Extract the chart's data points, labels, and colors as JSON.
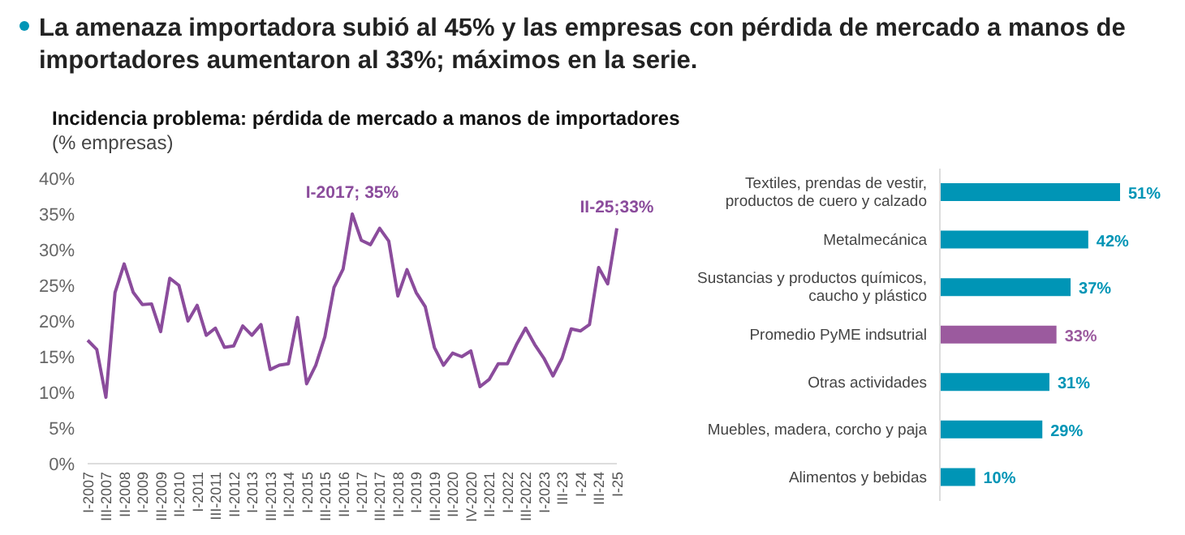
{
  "chart_data": [
    {
      "type": "line",
      "title": "La amenaza importadora subió al 45% y las empresas con pérdida de mercado a manos de importadores aumentaron al 33%; máximos en la serie.",
      "subtitle": "Incidencia problema: pérdida de mercado a manos de importadores",
      "ylabel": "(% empresas)",
      "categories": [
        "I-2007",
        null,
        "III-2007",
        null,
        "II-2008",
        null,
        "I-2009",
        null,
        "III-2009",
        null,
        "II-2010",
        null,
        "I-2011",
        null,
        "III-2011",
        null,
        "II-2012",
        null,
        "I-2013",
        null,
        "III-2013",
        null,
        "II-2014",
        null,
        "I-2015",
        null,
        "III-2015",
        null,
        "II-2016",
        null,
        "I-2017",
        null,
        "III-2017",
        null,
        "II-2018",
        null,
        "I-2019",
        null,
        "III-2019",
        null,
        "II-2020",
        null,
        "IV-2020",
        null,
        "II-2021",
        null,
        "I-2022",
        null,
        "III-2022",
        null,
        "I-2023",
        null,
        "III-23",
        null,
        "I-24",
        null,
        "III-24",
        null,
        "I-25"
      ],
      "series": [
        {
          "color": "#8b4c9c",
          "values": [
            17.3,
            16,
            9.3,
            24,
            28,
            24,
            22.3,
            22.4,
            18.5,
            26,
            25,
            20,
            22.2,
            18,
            19,
            16.3,
            16.5,
            19.3,
            18,
            19.5,
            13.2,
            13.8,
            14,
            20.5,
            11.2,
            13.8,
            17.8,
            24.7,
            27.3,
            35,
            31.3,
            30.7,
            33,
            31.2,
            23.5,
            27.2,
            24,
            22,
            16.3,
            13.8,
            15.5,
            15,
            15.8,
            10.8,
            11.8,
            14,
            14,
            16.7,
            19,
            16.7,
            14.8,
            12.3,
            14.8,
            18.9,
            18.6,
            19.5,
            27.5,
            25.2,
            33
          ]
        }
      ],
      "ylim": [
        0,
        40
      ],
      "yticks": [
        {
          "value": 0,
          "label": "0%"
        },
        {
          "value": 5,
          "label": "5%"
        },
        {
          "value": 10,
          "label": "10%"
        },
        {
          "value": 15,
          "label": "15%"
        },
        {
          "value": 20,
          "label": "20%"
        },
        {
          "value": 25,
          "label": "25%"
        },
        {
          "value": 30,
          "label": "30%"
        },
        {
          "value": 35,
          "label": "35%"
        },
        {
          "value": 40,
          "label": "40%"
        }
      ],
      "annotations": [
        {
          "text": "I-2017; 35%",
          "y": 35
        },
        {
          "text": "II-25;33%",
          "y": 33
        }
      ]
    },
    {
      "type": "bar",
      "orientation": "horizontal",
      "categories": [
        "Textiles, prendas de vestir, productos de cuero y calzado",
        "Metalmecánica",
        "Sustancias y productos químicos, caucho y plástico",
        "Promedio PyME indsutrial",
        "Otras actividades",
        "Muebles, madera, corcho y paja",
        "Alimentos y bebidas"
      ],
      "values": [
        51,
        42,
        37,
        33,
        31,
        29,
        10
      ],
      "colors": [
        "#0095b6",
        "#0095b6",
        "#0095b6",
        "#9b5a9e",
        "#0095b6",
        "#0095b6",
        "#0095b6"
      ],
      "value_labels": [
        "51%",
        "42%",
        "37%",
        "33%",
        "31%",
        "29%",
        "10%"
      ]
    }
  ]
}
